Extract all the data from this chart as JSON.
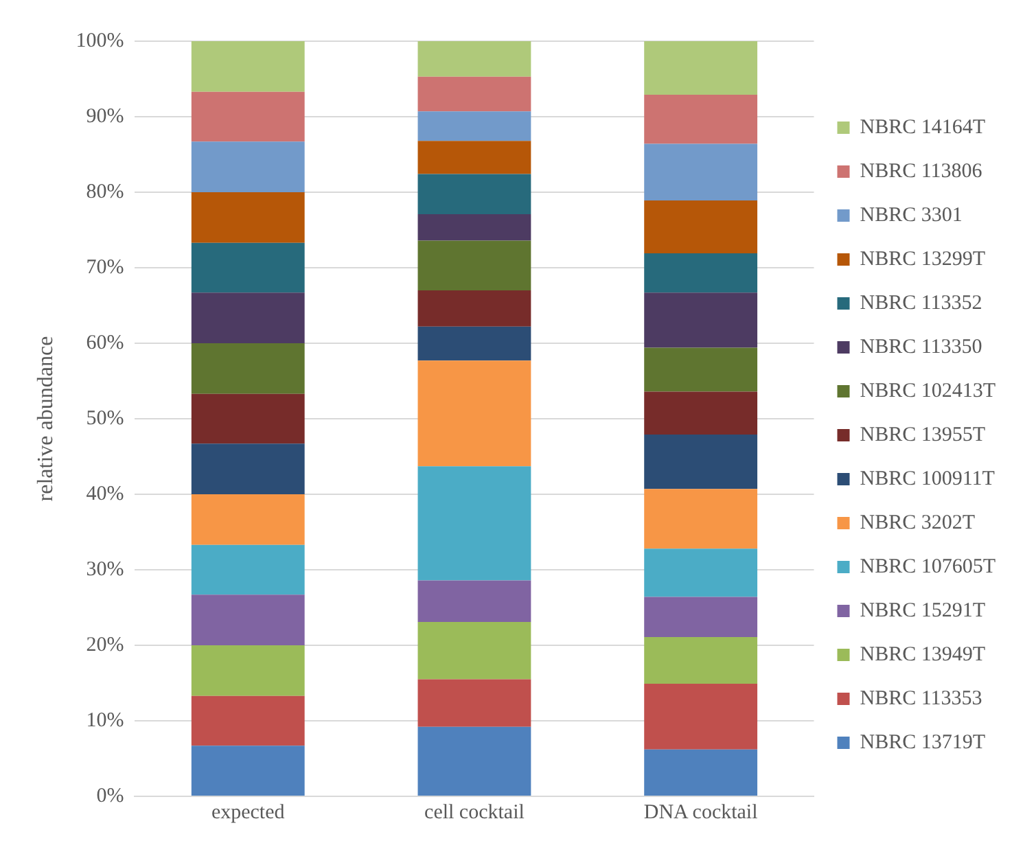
{
  "chart_data": {
    "type": "bar",
    "stacked": true,
    "ylabel": "relative abundance",
    "categories": [
      "expected",
      "cell cocktail",
      "DNA cocktail"
    ],
    "ylim": [
      0,
      100
    ],
    "yticks": [
      {
        "value": 0,
        "label": "0%"
      },
      {
        "value": 10,
        "label": "10%"
      },
      {
        "value": 20,
        "label": "20%"
      },
      {
        "value": 30,
        "label": "30%"
      },
      {
        "value": 40,
        "label": "40%"
      },
      {
        "value": 50,
        "label": "50%"
      },
      {
        "value": 60,
        "label": "60%"
      },
      {
        "value": 70,
        "label": "70%"
      },
      {
        "value": 80,
        "label": "80%"
      },
      {
        "value": 90,
        "label": "90%"
      },
      {
        "value": 100,
        "label": "100%"
      }
    ],
    "grid": "y",
    "legend": "right",
    "series": [
      {
        "name": "NBRC 13719T",
        "color": "#4f81bd",
        "values": [
          6.7,
          9.2,
          6.2
        ]
      },
      {
        "name": "NBRC 113353",
        "color": "#c0504d",
        "values": [
          6.6,
          6.3,
          8.7
        ]
      },
      {
        "name": "NBRC 13949T",
        "color": "#9bbb59",
        "values": [
          6.7,
          7.6,
          6.2
        ]
      },
      {
        "name": "NBRC 15291T",
        "color": "#8064a2",
        "values": [
          6.7,
          5.5,
          5.3
        ]
      },
      {
        "name": "NBRC 107605T",
        "color": "#4bacc6",
        "values": [
          6.6,
          15.1,
          6.4
        ]
      },
      {
        "name": "NBRC 3202T",
        "color": "#f79646",
        "values": [
          6.7,
          14.0,
          7.9
        ]
      },
      {
        "name": "NBRC 100911T",
        "color": "#2c4d75",
        "values": [
          6.7,
          4.5,
          7.2
        ]
      },
      {
        "name": "NBRC 13955T",
        "color": "#772c2a",
        "values": [
          6.6,
          4.8,
          5.7
        ]
      },
      {
        "name": "NBRC 102413T",
        "color": "#5f7530",
        "values": [
          6.7,
          6.6,
          5.8
        ]
      },
      {
        "name": "NBRC 113350",
        "color": "#4d3b62",
        "values": [
          6.7,
          3.5,
          7.3
        ]
      },
      {
        "name": "NBRC 113352",
        "color": "#276a7c",
        "values": [
          6.6,
          5.3,
          5.2
        ]
      },
      {
        "name": "NBRC 13299T",
        "color": "#b65708",
        "values": [
          6.7,
          4.4,
          7.0
        ]
      },
      {
        "name": "NBRC 3301",
        "color": "#729aca",
        "values": [
          6.7,
          3.9,
          7.5
        ]
      },
      {
        "name": "NBRC 113806",
        "color": "#cd7371",
        "values": [
          6.6,
          4.6,
          6.5
        ]
      },
      {
        "name": "NBRC 14164T",
        "color": "#afc97a",
        "values": [
          6.7,
          4.7,
          7.1
        ]
      }
    ]
  }
}
